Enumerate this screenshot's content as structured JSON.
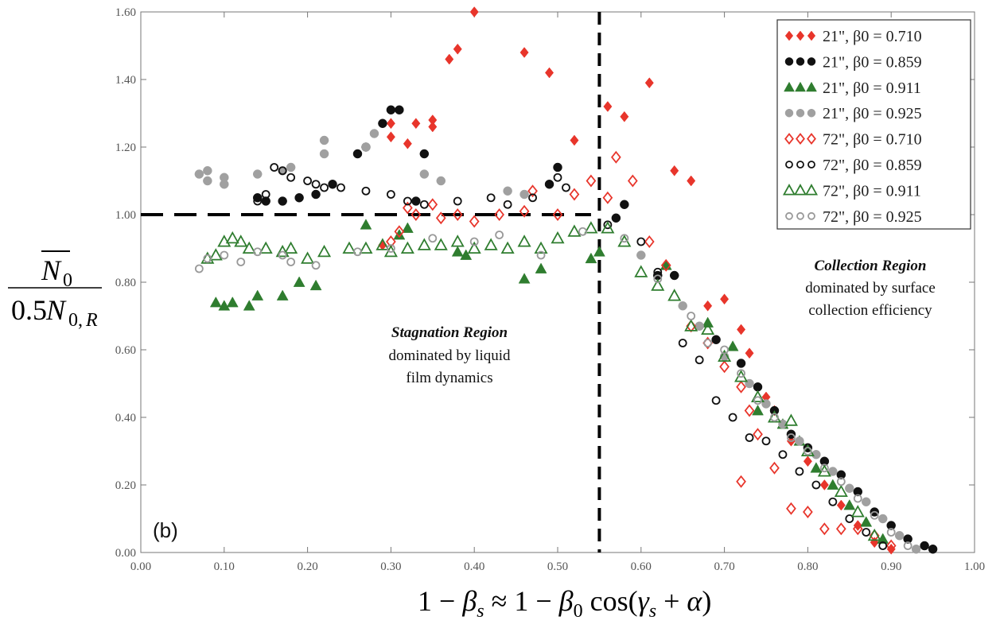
{
  "chart_data": {
    "type": "scatter",
    "panel_label": "(b)",
    "xlim": [
      0.0,
      1.0
    ],
    "ylim": [
      0.0,
      1.6
    ],
    "x_ticks": [
      "0.00",
      "0.10",
      "0.20",
      "0.30",
      "0.40",
      "0.50",
      "0.60",
      "0.70",
      "0.80",
      "0.90",
      "1.00"
    ],
    "y_ticks": [
      "0.00",
      "0.20",
      "0.40",
      "0.60",
      "0.80",
      "1.00",
      "1.20",
      "1.40",
      "1.60"
    ],
    "grid": false,
    "legend_position": "top-right",
    "xlabel": {
      "parts": [
        "1 − ",
        "β",
        "s",
        " ≈ 1 − ",
        "β",
        "0",
        " cos(",
        "γ",
        "s",
        " + ",
        "α",
        ")"
      ]
    },
    "ylabel": {
      "numerator": [
        "N",
        "0"
      ],
      "denominator": [
        "0.5",
        "N",
        "0,",
        "R"
      ]
    },
    "reference_lines": [
      {
        "orientation": "horizontal",
        "y": 1.0,
        "x_range": [
          0.0,
          0.54
        ],
        "style": "dashed"
      },
      {
        "orientation": "vertical",
        "x": 0.55,
        "style": "dashed"
      }
    ],
    "annotations": [
      {
        "title": "Stagnation Region",
        "lines": [
          "dominated by liquid",
          "film dynamics"
        ],
        "x": 0.38,
        "y": 0.67
      },
      {
        "title": "Collection Region",
        "lines": [
          "dominated by surface",
          "collection efficiency"
        ],
        "x": 0.83,
        "y": 0.87
      }
    ],
    "series": [
      {
        "name": "21\", β0 = 0.710",
        "marker": "diamond",
        "filled": true,
        "color": "#e8352b",
        "points": [
          [
            0.29,
            0.91
          ],
          [
            0.3,
            1.23
          ],
          [
            0.3,
            1.27
          ],
          [
            0.32,
            1.21
          ],
          [
            0.33,
            1.27
          ],
          [
            0.35,
            1.26
          ],
          [
            0.35,
            1.28
          ],
          [
            0.37,
            1.46
          ],
          [
            0.38,
            1.49
          ],
          [
            0.4,
            1.6
          ],
          [
            0.46,
            1.48
          ],
          [
            0.49,
            1.42
          ],
          [
            0.52,
            1.22
          ],
          [
            0.56,
            1.32
          ],
          [
            0.58,
            1.29
          ],
          [
            0.61,
            1.39
          ],
          [
            0.64,
            1.13
          ],
          [
            0.66,
            1.1
          ],
          [
            0.68,
            0.73
          ],
          [
            0.7,
            0.75
          ],
          [
            0.72,
            0.66
          ],
          [
            0.73,
            0.59
          ],
          [
            0.75,
            0.46
          ],
          [
            0.76,
            0.42
          ],
          [
            0.78,
            0.33
          ],
          [
            0.8,
            0.27
          ],
          [
            0.82,
            0.2
          ],
          [
            0.84,
            0.14
          ],
          [
            0.86,
            0.08
          ],
          [
            0.88,
            0.03
          ],
          [
            0.9,
            0.01
          ]
        ]
      },
      {
        "name": "21\", β0 = 0.859",
        "marker": "circle",
        "filled": true,
        "color": "#111111",
        "points": [
          [
            0.14,
            1.05
          ],
          [
            0.15,
            1.04
          ],
          [
            0.17,
            1.04
          ],
          [
            0.19,
            1.05
          ],
          [
            0.21,
            1.06
          ],
          [
            0.23,
            1.09
          ],
          [
            0.26,
            1.18
          ],
          [
            0.27,
            1.2
          ],
          [
            0.29,
            1.27
          ],
          [
            0.3,
            1.31
          ],
          [
            0.31,
            1.31
          ],
          [
            0.33,
            1.04
          ],
          [
            0.34,
            1.18
          ],
          [
            0.49,
            1.09
          ],
          [
            0.5,
            1.14
          ],
          [
            0.57,
            0.99
          ],
          [
            0.58,
            1.03
          ],
          [
            0.62,
            0.82
          ],
          [
            0.64,
            0.82
          ],
          [
            0.69,
            0.63
          ],
          [
            0.72,
            0.56
          ],
          [
            0.74,
            0.49
          ],
          [
            0.76,
            0.42
          ],
          [
            0.78,
            0.35
          ],
          [
            0.8,
            0.31
          ],
          [
            0.82,
            0.27
          ],
          [
            0.84,
            0.23
          ],
          [
            0.86,
            0.18
          ],
          [
            0.88,
            0.12
          ],
          [
            0.9,
            0.08
          ],
          [
            0.92,
            0.04
          ],
          [
            0.94,
            0.02
          ],
          [
            0.95,
            0.01
          ]
        ]
      },
      {
        "name": "21\", β0 = 0.911",
        "marker": "triangle",
        "filled": true,
        "color": "#2f7d2f",
        "points": [
          [
            0.09,
            0.74
          ],
          [
            0.1,
            0.73
          ],
          [
            0.11,
            0.74
          ],
          [
            0.13,
            0.73
          ],
          [
            0.14,
            0.76
          ],
          [
            0.17,
            0.76
          ],
          [
            0.19,
            0.8
          ],
          [
            0.21,
            0.79
          ],
          [
            0.27,
            0.97
          ],
          [
            0.31,
            0.94
          ],
          [
            0.32,
            0.96
          ],
          [
            0.38,
            0.89
          ],
          [
            0.39,
            0.88
          ],
          [
            0.46,
            0.81
          ],
          [
            0.48,
            0.84
          ],
          [
            0.54,
            0.87
          ],
          [
            0.55,
            0.89
          ],
          [
            0.63,
            0.85
          ],
          [
            0.68,
            0.68
          ],
          [
            0.71,
            0.61
          ],
          [
            0.74,
            0.42
          ],
          [
            0.77,
            0.38
          ],
          [
            0.79,
            0.33
          ],
          [
            0.81,
            0.25
          ],
          [
            0.83,
            0.2
          ],
          [
            0.85,
            0.14
          ],
          [
            0.87,
            0.09
          ],
          [
            0.89,
            0.04
          ]
        ]
      },
      {
        "name": "21\", β0 = 0.925",
        "marker": "circle",
        "filled": true,
        "color": "#a0a0a0",
        "points": [
          [
            0.07,
            1.12
          ],
          [
            0.08,
            1.1
          ],
          [
            0.08,
            1.13
          ],
          [
            0.1,
            1.09
          ],
          [
            0.1,
            1.11
          ],
          [
            0.14,
            1.12
          ],
          [
            0.17,
            1.13
          ],
          [
            0.18,
            1.14
          ],
          [
            0.22,
            1.18
          ],
          [
            0.22,
            1.22
          ],
          [
            0.27,
            1.2
          ],
          [
            0.28,
            1.24
          ],
          [
            0.34,
            1.12
          ],
          [
            0.36,
            1.1
          ],
          [
            0.44,
            1.07
          ],
          [
            0.46,
            1.06
          ],
          [
            0.6,
            0.88
          ],
          [
            0.65,
            0.73
          ],
          [
            0.67,
            0.67
          ],
          [
            0.7,
            0.58
          ],
          [
            0.73,
            0.5
          ],
          [
            0.75,
            0.44
          ],
          [
            0.77,
            0.38
          ],
          [
            0.79,
            0.33
          ],
          [
            0.81,
            0.29
          ],
          [
            0.83,
            0.24
          ],
          [
            0.85,
            0.19
          ],
          [
            0.87,
            0.15
          ],
          [
            0.89,
            0.1
          ],
          [
            0.91,
            0.05
          ],
          [
            0.93,
            0.01
          ]
        ]
      },
      {
        "name": "72\", β0 = 0.710",
        "marker": "diamond",
        "filled": false,
        "color": "#e8352b",
        "points": [
          [
            0.3,
            0.92
          ],
          [
            0.31,
            0.95
          ],
          [
            0.32,
            1.02
          ],
          [
            0.33,
            1.0
          ],
          [
            0.35,
            1.03
          ],
          [
            0.36,
            0.99
          ],
          [
            0.38,
            1.0
          ],
          [
            0.4,
            0.98
          ],
          [
            0.43,
            1.0
          ],
          [
            0.46,
            1.01
          ],
          [
            0.47,
            1.07
          ],
          [
            0.5,
            1.0
          ],
          [
            0.52,
            1.06
          ],
          [
            0.54,
            1.1
          ],
          [
            0.56,
            1.05
          ],
          [
            0.57,
            1.17
          ],
          [
            0.59,
            1.1
          ],
          [
            0.61,
            0.92
          ],
          [
            0.63,
            0.85
          ],
          [
            0.66,
            0.67
          ],
          [
            0.68,
            0.62
          ],
          [
            0.7,
            0.55
          ],
          [
            0.72,
            0.49
          ],
          [
            0.73,
            0.42
          ],
          [
            0.74,
            0.35
          ],
          [
            0.72,
            0.21
          ],
          [
            0.76,
            0.25
          ],
          [
            0.78,
            0.13
          ],
          [
            0.8,
            0.12
          ],
          [
            0.82,
            0.07
          ],
          [
            0.84,
            0.07
          ],
          [
            0.86,
            0.07
          ],
          [
            0.88,
            0.05
          ],
          [
            0.9,
            0.02
          ]
        ]
      },
      {
        "name": "72\", β0 = 0.859",
        "marker": "circle",
        "filled": false,
        "color": "#111111",
        "points": [
          [
            0.14,
            1.04
          ],
          [
            0.15,
            1.06
          ],
          [
            0.16,
            1.14
          ],
          [
            0.17,
            1.13
          ],
          [
            0.18,
            1.11
          ],
          [
            0.2,
            1.1
          ],
          [
            0.21,
            1.09
          ],
          [
            0.22,
            1.08
          ],
          [
            0.24,
            1.08
          ],
          [
            0.27,
            1.07
          ],
          [
            0.3,
            1.06
          ],
          [
            0.32,
            1.04
          ],
          [
            0.34,
            1.03
          ],
          [
            0.38,
            1.04
          ],
          [
            0.42,
            1.05
          ],
          [
            0.44,
            1.03
          ],
          [
            0.47,
            1.05
          ],
          [
            0.5,
            1.11
          ],
          [
            0.51,
            1.08
          ],
          [
            0.56,
            0.97
          ],
          [
            0.6,
            0.92
          ],
          [
            0.62,
            0.83
          ],
          [
            0.65,
            0.62
          ],
          [
            0.67,
            0.57
          ],
          [
            0.69,
            0.45
          ],
          [
            0.71,
            0.4
          ],
          [
            0.73,
            0.34
          ],
          [
            0.75,
            0.33
          ],
          [
            0.77,
            0.29
          ],
          [
            0.79,
            0.24
          ],
          [
            0.81,
            0.2
          ],
          [
            0.83,
            0.15
          ],
          [
            0.85,
            0.1
          ],
          [
            0.87,
            0.06
          ],
          [
            0.89,
            0.02
          ]
        ]
      },
      {
        "name": "72\", β0 = 0.911",
        "marker": "triangle",
        "filled": false,
        "color": "#2f7d2f",
        "points": [
          [
            0.08,
            0.87
          ],
          [
            0.09,
            0.88
          ],
          [
            0.1,
            0.92
          ],
          [
            0.11,
            0.93
          ],
          [
            0.12,
            0.92
          ],
          [
            0.13,
            0.9
          ],
          [
            0.15,
            0.9
          ],
          [
            0.17,
            0.89
          ],
          [
            0.18,
            0.9
          ],
          [
            0.2,
            0.87
          ],
          [
            0.22,
            0.89
          ],
          [
            0.25,
            0.9
          ],
          [
            0.27,
            0.9
          ],
          [
            0.29,
            0.91
          ],
          [
            0.3,
            0.89
          ],
          [
            0.32,
            0.9
          ],
          [
            0.34,
            0.91
          ],
          [
            0.36,
            0.91
          ],
          [
            0.38,
            0.92
          ],
          [
            0.4,
            0.9
          ],
          [
            0.42,
            0.91
          ],
          [
            0.44,
            0.9
          ],
          [
            0.46,
            0.92
          ],
          [
            0.48,
            0.9
          ],
          [
            0.5,
            0.93
          ],
          [
            0.52,
            0.95
          ],
          [
            0.54,
            0.96
          ],
          [
            0.56,
            0.96
          ],
          [
            0.58,
            0.92
          ],
          [
            0.6,
            0.83
          ],
          [
            0.62,
            0.79
          ],
          [
            0.64,
            0.76
          ],
          [
            0.66,
            0.67
          ],
          [
            0.68,
            0.66
          ],
          [
            0.7,
            0.58
          ],
          [
            0.72,
            0.52
          ],
          [
            0.74,
            0.46
          ],
          [
            0.76,
            0.4
          ],
          [
            0.78,
            0.39
          ],
          [
            0.8,
            0.3
          ],
          [
            0.82,
            0.24
          ],
          [
            0.84,
            0.18
          ],
          [
            0.86,
            0.12
          ],
          [
            0.88,
            0.05
          ]
        ]
      },
      {
        "name": "72\", β0 = 0.925",
        "marker": "circle",
        "filled": false,
        "color": "#999999",
        "points": [
          [
            0.07,
            0.84
          ],
          [
            0.08,
            0.87
          ],
          [
            0.1,
            0.88
          ],
          [
            0.12,
            0.86
          ],
          [
            0.14,
            0.89
          ],
          [
            0.17,
            0.88
          ],
          [
            0.18,
            0.86
          ],
          [
            0.21,
            0.85
          ],
          [
            0.26,
            0.89
          ],
          [
            0.3,
            0.9
          ],
          [
            0.35,
            0.93
          ],
          [
            0.4,
            0.92
          ],
          [
            0.43,
            0.94
          ],
          [
            0.48,
            0.88
          ],
          [
            0.53,
            0.95
          ],
          [
            0.58,
            0.93
          ],
          [
            0.62,
            0.81
          ],
          [
            0.66,
            0.7
          ],
          [
            0.68,
            0.62
          ],
          [
            0.7,
            0.6
          ],
          [
            0.72,
            0.53
          ],
          [
            0.74,
            0.45
          ],
          [
            0.76,
            0.4
          ],
          [
            0.78,
            0.34
          ],
          [
            0.8,
            0.3
          ],
          [
            0.82,
            0.25
          ],
          [
            0.84,
            0.21
          ],
          [
            0.86,
            0.16
          ],
          [
            0.88,
            0.11
          ],
          [
            0.9,
            0.06
          ],
          [
            0.92,
            0.02
          ]
        ]
      }
    ]
  }
}
